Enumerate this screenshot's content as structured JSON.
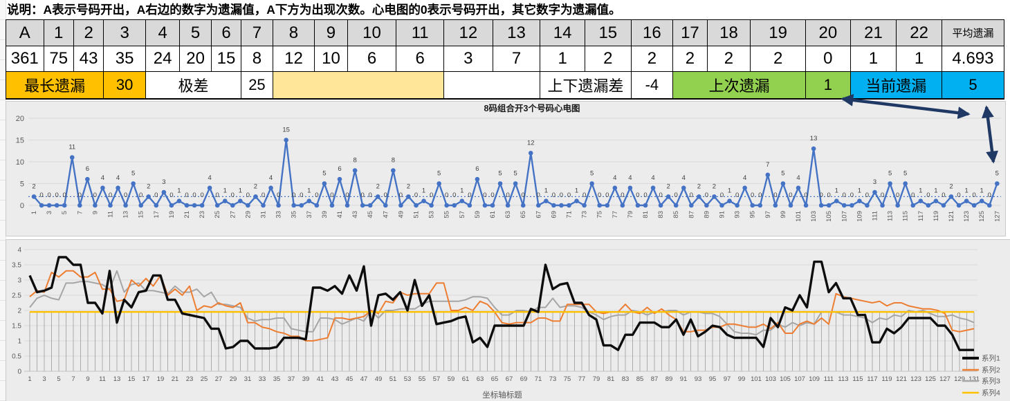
{
  "note": "说明：A表示号码开出，A右边的数字为遗漏值，A下方为出现次数。心电图的0表示号码开出，其它数字为遗漏值。",
  "table": {
    "headers": [
      "A",
      "1",
      "2",
      "3",
      "4",
      "5",
      "6",
      "7",
      "8",
      "9",
      "10",
      "11",
      "12",
      "13",
      "14",
      "15",
      "16",
      "17",
      "18",
      "19",
      "20",
      "21",
      "22",
      "平均遗漏"
    ],
    "counts": [
      "361",
      "75",
      "43",
      "35",
      "24",
      "20",
      "15",
      "8",
      "12",
      "10",
      "6",
      "6",
      "3",
      "7",
      "1",
      "2",
      "2",
      "2",
      "2",
      "2",
      "0",
      "1",
      "1",
      "4.693"
    ],
    "summary": {
      "longest_label": "最长遗漏",
      "longest_value": "30",
      "range_label": "极差",
      "range_value": "25",
      "updown_label": "上下遗漏差",
      "updown_value": "-4",
      "last_label": "上次遗漏",
      "last_value": "1",
      "current_label": "当前遗漏",
      "current_value": "5"
    }
  },
  "colors": {
    "header_bg": "#d9d9d9",
    "orange": "#ffc000",
    "light_yellow": "#ffe699",
    "green": "#92d050",
    "cyan": "#00b0f0",
    "ecg_line": "#4472c4",
    "series1": "#0d0d0d",
    "series2": "#ed7d31",
    "series3": "#a5a5a5",
    "series4": "#ffc000",
    "arrow": "#1f3864",
    "chart_bg": "#ececec",
    "gridline": "#d9d9d9",
    "axis_text": "#595959",
    "label_text": "#3f3f3f"
  },
  "chart_data": [
    {
      "type": "line",
      "title": "8码组合开3个号码心电图",
      "x_start": 1,
      "x_end": 127,
      "xtick_step": 2,
      "ylim": [
        0,
        20
      ],
      "yticks": [
        0,
        5,
        10,
        15,
        20
      ],
      "mean_line": 2,
      "grid": true,
      "markers": true,
      "data_labels": true,
      "values": [
        2,
        0,
        0,
        0,
        0,
        11,
        0,
        6,
        0,
        4,
        0,
        4,
        0,
        5,
        0,
        2,
        0,
        3,
        0,
        1,
        0,
        0,
        0,
        4,
        0,
        1,
        0,
        1,
        0,
        2,
        0,
        4,
        0,
        15,
        0,
        0,
        1,
        0,
        5,
        0,
        6,
        0,
        8,
        0,
        0,
        2,
        0,
        8,
        0,
        2,
        0,
        1,
        0,
        5,
        0,
        0,
        1,
        0,
        6,
        0,
        0,
        5,
        0,
        5,
        0,
        12,
        0,
        1,
        0,
        0,
        0,
        1,
        0,
        5,
        0,
        0,
        4,
        0,
        4,
        0,
        0,
        4,
        0,
        2,
        0,
        4,
        0,
        2,
        0,
        2,
        0,
        1,
        0,
        4,
        0,
        0,
        7,
        0,
        5,
        0,
        4,
        0,
        13,
        0,
        0,
        1,
        0,
        0,
        1,
        0,
        3,
        0,
        5,
        0,
        5,
        0,
        1,
        0,
        1,
        0,
        2,
        0,
        1,
        0,
        1,
        0,
        5
      ]
    },
    {
      "type": "line",
      "title": "",
      "xlabel": "坐标轴标题",
      "x_start": 1,
      "x_end": 131,
      "xtick_step": 2,
      "ylim": [
        0,
        4
      ],
      "yticks": [
        0,
        0.5,
        1,
        1.5,
        2,
        2.5,
        3,
        3.5,
        4
      ],
      "grid": true,
      "drop_lines_to": 1.95,
      "legend_position": "right",
      "series": [
        {
          "name": "系列1",
          "values": [
            3.15,
            2.6,
            2.65,
            2.75,
            3.75,
            3.75,
            3.5,
            3.5,
            2.25,
            2.25,
            1.9,
            3.3,
            1.6,
            2.35,
            2.1,
            2.6,
            2.65,
            3.15,
            3.15,
            2.35,
            2.35,
            1.9,
            1.85,
            1.8,
            1.75,
            1.4,
            1.4,
            0.75,
            0.8,
            1.0,
            1.0,
            0.75,
            0.75,
            0.75,
            0.8,
            1.1,
            1.1,
            1.1,
            1.05,
            2.75,
            2.75,
            2.65,
            2.8,
            2.55,
            3.15,
            2.65,
            3.45,
            1.5,
            2.5,
            2.55,
            2.35,
            2.6,
            2.0,
            3.0,
            2.15,
            2.5,
            1.55,
            1.6,
            1.65,
            1.75,
            1.8,
            0.95,
            1.1,
            0.8,
            1.5,
            1.5,
            1.5,
            1.5,
            1.5,
            2.05,
            1.95,
            3.5,
            2.7,
            2.85,
            2.9,
            2.25,
            2.25,
            1.85,
            1.7,
            0.85,
            0.85,
            0.7,
            1.2,
            1.2,
            1.6,
            1.6,
            1.6,
            1.45,
            1.45,
            1.7,
            1.2,
            1.7,
            1.15,
            1.3,
            1.5,
            1.45,
            1.2,
            1.1,
            1.1,
            1.1,
            1.1,
            0.8,
            1.75,
            1.45,
            2.1,
            2.0,
            2.5,
            2.1,
            3.6,
            3.6,
            2.6,
            2.9,
            2.4,
            2.4,
            1.85,
            1.85,
            0.95,
            0.95,
            1.4,
            1.25,
            1.45,
            1.75,
            1.75,
            1.75,
            1.75,
            1.5,
            1.5,
            1.2,
            0.7,
            0.7,
            0.7
          ]
        },
        {
          "name": "系列2",
          "values": [
            2.45,
            2.65,
            2.6,
            3.25,
            3.1,
            3.3,
            3.3,
            3.1,
            3.1,
            3.25,
            2.7,
            2.7,
            2.3,
            2.35,
            3.0,
            2.8,
            3.05,
            2.8,
            3.15,
            2.5,
            2.7,
            2.5,
            2.8,
            2.0,
            2.15,
            2.1,
            2.25,
            2.15,
            2.1,
            2.25,
            1.6,
            1.6,
            1.45,
            1.4,
            1.3,
            1.25,
            1.15,
            1.15,
            1.0,
            1.0,
            1.05,
            1.1,
            1.75,
            1.75,
            1.7,
            1.75,
            1.8,
            2.0,
            1.9,
            2.3,
            2.25,
            2.6,
            2.5,
            2.55,
            2.55,
            2.55,
            2.9,
            2.9,
            2.0,
            2.0,
            2.1,
            2.0,
            2.3,
            2.2,
            1.95,
            1.6,
            1.55,
            1.6,
            1.6,
            1.6,
            1.75,
            1.75,
            1.65,
            1.65,
            2.2,
            2.2,
            2.2,
            2.2,
            1.95,
            1.9,
            1.95,
            1.95,
            2.2,
            1.95,
            1.9,
            2.1,
            1.9,
            2.05,
            1.85,
            1.7,
            1.3,
            1.3,
            1.35,
            1.35,
            1.45,
            1.45,
            1.55,
            1.55,
            1.5,
            1.45,
            1.45,
            1.55,
            1.4,
            1.6,
            1.25,
            1.25,
            1.55,
            1.65,
            1.55,
            1.75,
            1.55,
            2.55,
            2.45,
            2.4,
            2.35,
            2.3,
            2.25,
            2.3,
            2.15,
            2.25,
            2.25,
            2.15,
            2.1,
            2.05,
            2.05,
            2.0,
            1.9,
            1.35,
            1.3,
            1.35,
            1.4
          ]
        },
        {
          "name": "系列3",
          "values": [
            2.1,
            2.4,
            2.5,
            2.4,
            2.35,
            2.9,
            2.9,
            2.95,
            2.95,
            2.9,
            2.85,
            2.7,
            3.3,
            2.6,
            2.85,
            2.9,
            2.65,
            2.65,
            2.6,
            2.55,
            2.8,
            2.6,
            2.6,
            2.7,
            2.45,
            2.6,
            2.2,
            2.2,
            2.15,
            2.1,
            1.75,
            1.65,
            1.7,
            1.7,
            1.75,
            1.75,
            1.4,
            1.35,
            1.3,
            1.3,
            1.75,
            1.75,
            1.7,
            1.55,
            1.65,
            1.75,
            1.65,
            2.0,
            1.75,
            2.0,
            2.0,
            2.05,
            2.05,
            2.05,
            2.2,
            2.3,
            2.3,
            2.3,
            2.3,
            2.3,
            2.35,
            2.45,
            2.45,
            2.4,
            2.1,
            1.85,
            1.85,
            2.0,
            2.0,
            1.95,
            2.1,
            2.1,
            2.4,
            2.1,
            2.15,
            2.15,
            2.1,
            1.95,
            1.85,
            1.7,
            1.8,
            1.85,
            1.85,
            2.0,
            1.95,
            1.85,
            1.95,
            1.95,
            2.0,
            2.0,
            1.85,
            1.95,
            1.95,
            1.9,
            1.9,
            1.8,
            1.55,
            1.3,
            1.25,
            1.25,
            1.2,
            1.35,
            1.35,
            1.55,
            1.45,
            1.6,
            1.5,
            1.6,
            1.55,
            1.95,
            1.95,
            1.95,
            1.85,
            1.85,
            1.8,
            1.75,
            1.6,
            1.75,
            1.7,
            1.85,
            1.8,
            2.0,
            1.95,
            2.0,
            1.9,
            1.8,
            1.8,
            1.85,
            1.75,
            1.7,
            1.6
          ]
        },
        {
          "name": "系列4",
          "constant": 1.95
        }
      ]
    }
  ]
}
